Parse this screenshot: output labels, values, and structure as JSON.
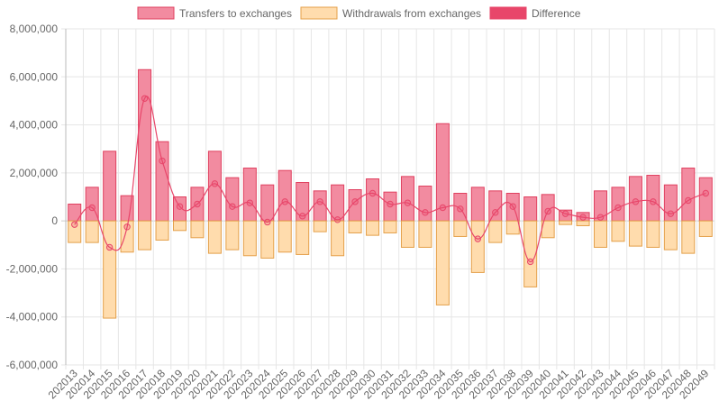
{
  "colors": {
    "transfers_fill": "#f28ba0",
    "transfers_stroke": "#e0405f",
    "withdrawals_fill": "#ffdcad",
    "withdrawals_stroke": "#e4a04a",
    "difference": "#e8466a",
    "grid": "#e6e6e6",
    "axis_text": "#666666",
    "legend_text": "#666666"
  },
  "chart_data": {
    "type": "bar",
    "title": "",
    "xlabel": "",
    "ylabel": "",
    "ylim": [
      -6000000,
      8000000
    ],
    "yticks": [
      8000000,
      6000000,
      4000000,
      2000000,
      0,
      -2000000,
      -4000000,
      -6000000
    ],
    "ytick_labels": [
      "8,000,000",
      "6,000,000",
      "4,000,000",
      "2,000,000",
      "0",
      "-2,000,000",
      "-4,000,000",
      "-6,000,000"
    ],
    "grid": true,
    "legend_position": "top",
    "categories": [
      "202013",
      "202014",
      "202015",
      "202016",
      "202017",
      "202018",
      "202019",
      "202020",
      "202021",
      "202022",
      "202023",
      "202024",
      "202025",
      "202026",
      "202027",
      "202028",
      "202029",
      "202030",
      "202031",
      "202032",
      "202033",
      "202034",
      "202035",
      "202036",
      "202037",
      "202038",
      "202039",
      "202040",
      "202041",
      "202042",
      "202043",
      "202044",
      "202045",
      "202046",
      "202047",
      "202048",
      "202049"
    ],
    "series": [
      {
        "name": "Transfers to exchanges",
        "kind": "bar",
        "values": [
          700000,
          1400000,
          2900000,
          1050000,
          6300000,
          3300000,
          1000000,
          1400000,
          2900000,
          1800000,
          2200000,
          1500000,
          2100000,
          1600000,
          1250000,
          1500000,
          1300000,
          1750000,
          1200000,
          1850000,
          1450000,
          4050000,
          1150000,
          1400000,
          1250000,
          1150000,
          1000000,
          1100000,
          450000,
          350000,
          1250000,
          1400000,
          1850000,
          1900000,
          1500000,
          2200000,
          1800000
        ]
      },
      {
        "name": "Withdrawals from exchanges",
        "kind": "bar",
        "values": [
          -900000,
          -900000,
          -4050000,
          -1300000,
          -1200000,
          -800000,
          -400000,
          -700000,
          -1350000,
          -1200000,
          -1450000,
          -1550000,
          -1300000,
          -1400000,
          -450000,
          -1450000,
          -500000,
          -600000,
          -500000,
          -1100000,
          -1100000,
          -3500000,
          -650000,
          -2150000,
          -900000,
          -550000,
          -2750000,
          -700000,
          -150000,
          -200000,
          -1100000,
          -850000,
          -1050000,
          -1100000,
          -1200000,
          -1350000,
          -650000
        ]
      },
      {
        "name": "Difference",
        "kind": "line",
        "values": [
          -150000,
          550000,
          -1100000,
          -250000,
          5100000,
          2500000,
          600000,
          700000,
          1550000,
          600000,
          750000,
          -50000,
          800000,
          200000,
          800000,
          50000,
          800000,
          1150000,
          700000,
          750000,
          350000,
          550000,
          500000,
          -750000,
          350000,
          600000,
          -1700000,
          400000,
          300000,
          150000,
          150000,
          550000,
          800000,
          800000,
          300000,
          850000,
          1150000
        ]
      }
    ]
  }
}
